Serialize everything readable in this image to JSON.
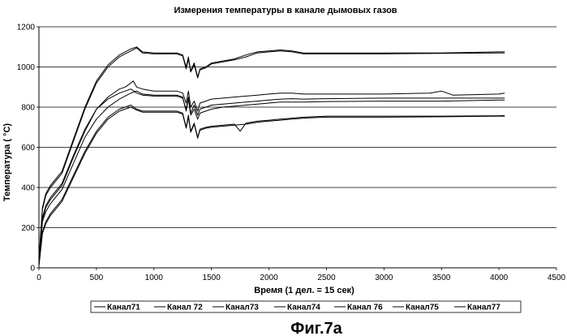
{
  "chart_data": {
    "type": "line",
    "title": "Измерения температуры в канале дымовых газов",
    "xlabel": "Время (1 дел. = 15 сек)",
    "ylabel": "Температура ( °C)",
    "xlim": [
      0,
      4500
    ],
    "ylim": [
      0,
      1200
    ],
    "xticks": [
      "0",
      "500",
      "1000",
      "1500",
      "2000",
      "2500",
      "3000",
      "3500",
      "4000",
      "4500"
    ],
    "yticks": [
      "0",
      "200",
      "400",
      "600",
      "800",
      "1000",
      "1200"
    ],
    "grid": "horizontal",
    "legend_position": "bottom",
    "series": [
      {
        "name": "Канал71",
        "color": "#000000",
        "x": [
          0,
          30,
          60,
          100,
          200,
          300,
          400,
          500,
          600,
          700,
          800,
          850,
          900,
          1000,
          1100,
          1200,
          1250,
          1280,
          1300,
          1320,
          1350,
          1380,
          1400,
          1450,
          1500,
          1600,
          1700,
          1800,
          1900,
          2000,
          2100,
          2200,
          2300,
          2500,
          3000,
          3500,
          4000,
          4050
        ],
        "y": [
          40,
          300,
          370,
          410,
          480,
          640,
          800,
          930,
          1010,
          1060,
          1090,
          1100,
          1075,
          1070,
          1070,
          1070,
          1060,
          1000,
          1050,
          980,
          1020,
          950,
          990,
          1000,
          1020,
          1030,
          1040,
          1060,
          1075,
          1080,
          1085,
          1080,
          1070,
          1070,
          1070,
          1070,
          1075,
          1075
        ]
      },
      {
        "name": "Канал 72",
        "color": "#000000",
        "x": [
          0,
          30,
          60,
          100,
          200,
          300,
          400,
          500,
          600,
          700,
          800,
          850,
          900,
          1000,
          1100,
          1200,
          1250,
          1280,
          1300,
          1320,
          1350,
          1380,
          1400,
          1450,
          1500,
          1600,
          1700,
          1800,
          1900,
          2000,
          2100,
          2200,
          2300,
          2500,
          3000,
          3500,
          4000,
          4050
        ],
        "y": [
          40,
          290,
          360,
          400,
          470,
          630,
          790,
          920,
          1000,
          1050,
          1080,
          1095,
          1070,
          1065,
          1065,
          1065,
          1055,
          990,
          1040,
          975,
          1010,
          945,
          985,
          995,
          1015,
          1025,
          1035,
          1050,
          1070,
          1075,
          1080,
          1075,
          1065,
          1065,
          1065,
          1068,
          1070,
          1070
        ]
      },
      {
        "name": "Канал73",
        "color": "#000000",
        "x": [
          0,
          30,
          60,
          100,
          200,
          300,
          400,
          500,
          600,
          700,
          750,
          800,
          820,
          850,
          900,
          1000,
          1100,
          1200,
          1250,
          1280,
          1300,
          1320,
          1350,
          1380,
          1400,
          1450,
          1500,
          1600,
          1700,
          1800,
          1900,
          2000,
          2100,
          2200,
          2300,
          2500,
          3000,
          3400,
          3500,
          3600,
          4000,
          4050
        ],
        "y": [
          20,
          240,
          300,
          340,
          410,
          550,
          680,
          790,
          850,
          890,
          900,
          920,
          930,
          900,
          890,
          880,
          880,
          880,
          870,
          820,
          880,
          800,
          830,
          780,
          820,
          830,
          840,
          845,
          850,
          855,
          860,
          865,
          870,
          870,
          865,
          865,
          865,
          870,
          880,
          860,
          865,
          870
        ]
      },
      {
        "name": "Канал74",
        "color": "#000000",
        "x": [
          0,
          30,
          60,
          100,
          200,
          300,
          400,
          500,
          600,
          700,
          800,
          850,
          900,
          1000,
          1100,
          1200,
          1250,
          1280,
          1300,
          1320,
          1350,
          1380,
          1400,
          1450,
          1500,
          1600,
          1700,
          1800,
          1900,
          2000,
          2100,
          2200,
          2300,
          2500,
          3000,
          3500,
          4000,
          4050
        ],
        "y": [
          20,
          230,
          280,
          320,
          390,
          520,
          650,
          740,
          800,
          840,
          870,
          880,
          865,
          860,
          860,
          860,
          850,
          780,
          840,
          760,
          790,
          740,
          770,
          780,
          790,
          800,
          805,
          810,
          815,
          820,
          825,
          825,
          825,
          828,
          830,
          830,
          835,
          835
        ]
      },
      {
        "name": "Канал 76",
        "color": "#000000",
        "x": [
          0,
          30,
          60,
          100,
          200,
          300,
          400,
          500,
          600,
          700,
          800,
          850,
          900,
          1000,
          1100,
          1200,
          1250,
          1280,
          1300,
          1320,
          1350,
          1380,
          1400,
          1450,
          1500,
          1600,
          1700,
          1750,
          1800,
          1900,
          2000,
          2100,
          2200,
          2300,
          2500,
          3000,
          3500,
          4000,
          4050
        ],
        "y": [
          10,
          180,
          230,
          270,
          340,
          460,
          580,
          680,
          750,
          790,
          810,
          790,
          780,
          780,
          780,
          780,
          770,
          700,
          760,
          680,
          720,
          650,
          690,
          700,
          705,
          710,
          715,
          680,
          720,
          730,
          735,
          740,
          745,
          750,
          755,
          755,
          755,
          757,
          758
        ]
      },
      {
        "name": "Канал75",
        "color": "#000000",
        "x": [
          0,
          30,
          60,
          100,
          200,
          300,
          400,
          500,
          600,
          700,
          800,
          850,
          900,
          1000,
          1100,
          1200,
          1250,
          1280,
          1300,
          1320,
          1350,
          1380,
          1400,
          1450,
          1500,
          1600,
          1700,
          1800,
          1900,
          2000,
          2100,
          2200,
          2300,
          2500,
          3000,
          3500,
          4000,
          4050
        ],
        "y": [
          10,
          170,
          220,
          260,
          330,
          450,
          570,
          670,
          740,
          780,
          800,
          785,
          775,
          775,
          775,
          775,
          765,
          695,
          750,
          675,
          715,
          645,
          685,
          695,
          700,
          705,
          710,
          715,
          725,
          730,
          735,
          740,
          745,
          750,
          750,
          752,
          755,
          755
        ]
      },
      {
        "name": "Канал77",
        "color": "#000000",
        "x": [
          0,
          30,
          60,
          100,
          200,
          300,
          400,
          500,
          600,
          700,
          750,
          800,
          850,
          900,
          1000,
          1100,
          1200,
          1250,
          1280,
          1300,
          1320,
          1350,
          1380,
          1400,
          1450,
          1500,
          1600,
          1700,
          1800,
          1900,
          2000,
          2100,
          2200,
          2300,
          2500,
          3000,
          3500,
          4000,
          4050
        ],
        "y": [
          15,
          250,
          310,
          350,
          420,
          560,
          690,
          790,
          840,
          870,
          880,
          890,
          870,
          860,
          855,
          855,
          855,
          845,
          790,
          850,
          770,
          810,
          760,
          790,
          800,
          810,
          815,
          820,
          825,
          830,
          835,
          840,
          842,
          840,
          842,
          845,
          845,
          845,
          845
        ]
      }
    ]
  },
  "figure_caption": "Фиг.7а"
}
